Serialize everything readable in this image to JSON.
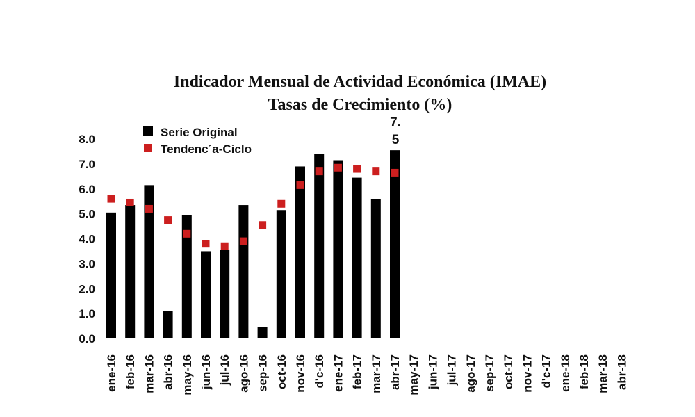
{
  "chart_data": {
    "type": "bar",
    "title": "Indicador Mensual de Actividad Económica (IMAE)",
    "subtitle": "Tasas de Crecimiento (%)",
    "categories": [
      "ene-16",
      "feb-16",
      "mar-16",
      "abr-16",
      "may-16",
      "jun-16",
      "jul-16",
      "ago-16",
      "sep-16",
      "oct-16",
      "nov-16",
      "d'c-16",
      "ene-17",
      "feb-17",
      "mar-17",
      "abr-17",
      "may-17",
      "jun-17",
      "jul-17",
      "ago-17",
      "sep-17",
      "oct-17",
      "nov-17",
      "d'c-17",
      "ene-18",
      "feb-18",
      "mar-18",
      "abr-18"
    ],
    "series": [
      {
        "name": "Serie Original",
        "kind": "bar",
        "color": "#000000",
        "values": [
          5.05,
          5.35,
          6.15,
          1.1,
          4.95,
          3.5,
          3.55,
          5.35,
          0.45,
          5.15,
          6.9,
          7.4,
          7.15,
          6.45,
          5.6,
          7.55,
          null,
          null,
          null,
          null,
          null,
          null,
          null,
          null,
          null,
          null,
          null,
          null
        ]
      },
      {
        "name": "Tendenc´a-Ciclo",
        "kind": "marker",
        "color": "#cc1f1f",
        "values": [
          5.6,
          5.45,
          5.2,
          4.75,
          4.2,
          3.8,
          3.7,
          3.9,
          4.55,
          5.4,
          6.15,
          6.7,
          6.85,
          6.8,
          6.7,
          6.65,
          null,
          null,
          null,
          null,
          null,
          null,
          null,
          null,
          null,
          null,
          null,
          null
        ]
      }
    ],
    "yticks": [
      "0.0",
      "1.0",
      "2.0",
      "3.0",
      "4.0",
      "5.0",
      "6.0",
      "7.0",
      "8.0"
    ],
    "ylim": [
      0,
      8
    ],
    "annotation": {
      "line1": "7.",
      "line2": "5"
    },
    "legend_position": "top-left",
    "grid": false
  }
}
